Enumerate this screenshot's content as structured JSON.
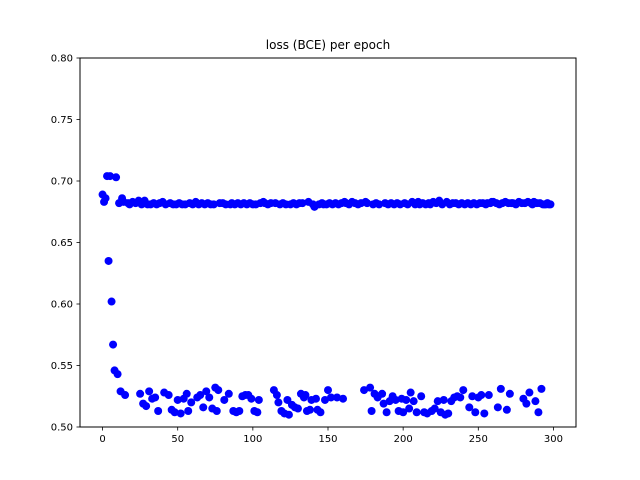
{
  "chart_data": {
    "type": "scatter",
    "title": "loss (BCE) per epoch",
    "xlabel": "",
    "ylabel": "",
    "xlim": [
      -15,
      315
    ],
    "ylim": [
      0.5,
      0.8
    ],
    "xticks": [
      0,
      50,
      100,
      150,
      200,
      250,
      300
    ],
    "yticks": [
      0.5,
      0.55,
      0.6,
      0.65,
      0.7,
      0.75,
      0.8
    ],
    "ytick_labels": [
      "0.50",
      "0.55",
      "0.60",
      "0.65",
      "0.70",
      "0.75",
      "0.80"
    ],
    "grid": false,
    "marker_color": "#0000ff",
    "series": [
      {
        "points": [
          [
            0,
            0.689
          ],
          [
            1,
            0.683
          ],
          [
            2,
            0.686
          ],
          [
            3,
            0.704
          ],
          [
            4,
            0.635
          ],
          [
            5,
            0.704
          ],
          [
            6,
            0.602
          ],
          [
            7,
            0.567
          ],
          [
            8,
            0.546
          ],
          [
            9,
            0.703
          ],
          [
            10,
            0.543
          ],
          [
            11,
            0.682
          ],
          [
            12,
            0.529
          ],
          [
            13,
            0.686
          ],
          [
            14,
            0.683
          ],
          [
            15,
            0.526
          ],
          [
            17,
            0.682
          ],
          [
            18,
            0.681
          ],
          [
            20,
            0.683
          ],
          [
            22,
            0.682
          ],
          [
            24,
            0.684
          ],
          [
            25,
            0.527
          ],
          [
            26,
            0.681
          ],
          [
            27,
            0.519
          ],
          [
            28,
            0.684
          ],
          [
            29,
            0.517
          ],
          [
            30,
            0.681
          ],
          [
            31,
            0.529
          ],
          [
            32,
            0.681
          ],
          [
            33,
            0.523
          ],
          [
            34,
            0.682
          ],
          [
            35,
            0.524
          ],
          [
            36,
            0.681
          ],
          [
            37,
            0.513
          ],
          [
            38,
            0.682
          ],
          [
            40,
            0.683
          ],
          [
            41,
            0.528
          ],
          [
            42,
            0.681
          ],
          [
            44,
            0.526
          ],
          [
            45,
            0.682
          ],
          [
            46,
            0.514
          ],
          [
            47,
            0.681
          ],
          [
            48,
            0.512
          ],
          [
            49,
            0.681
          ],
          [
            50,
            0.522
          ],
          [
            51,
            0.682
          ],
          [
            52,
            0.511
          ],
          [
            53,
            0.681
          ],
          [
            54,
            0.523
          ],
          [
            55,
            0.681
          ],
          [
            56,
            0.527
          ],
          [
            57,
            0.513
          ],
          [
            58,
            0.682
          ],
          [
            59,
            0.52
          ],
          [
            60,
            0.681
          ],
          [
            62,
            0.683
          ],
          [
            63,
            0.524
          ],
          [
            64,
            0.681
          ],
          [
            65,
            0.526
          ],
          [
            66,
            0.682
          ],
          [
            67,
            0.516
          ],
          [
            68,
            0.681
          ],
          [
            69,
            0.529
          ],
          [
            70,
            0.682
          ],
          [
            71,
            0.524
          ],
          [
            72,
            0.681
          ],
          [
            73,
            0.515
          ],
          [
            74,
            0.681
          ],
          [
            75,
            0.532
          ],
          [
            76,
            0.513
          ],
          [
            77,
            0.53
          ],
          [
            78,
            0.682
          ],
          [
            80,
            0.682
          ],
          [
            81,
            0.522
          ],
          [
            82,
            0.681
          ],
          [
            84,
            0.527
          ],
          [
            85,
            0.681
          ],
          [
            86,
            0.682
          ],
          [
            87,
            0.513
          ],
          [
            88,
            0.681
          ],
          [
            89,
            0.512
          ],
          [
            90,
            0.682
          ],
          [
            91,
            0.513
          ],
          [
            92,
            0.681
          ],
          [
            93,
            0.525
          ],
          [
            94,
            0.682
          ],
          [
            95,
            0.526
          ],
          [
            96,
            0.681
          ],
          [
            97,
            0.526
          ],
          [
            98,
            0.682
          ],
          [
            99,
            0.523
          ],
          [
            100,
            0.681
          ],
          [
            101,
            0.513
          ],
          [
            102,
            0.681
          ],
          [
            103,
            0.512
          ],
          [
            104,
            0.522
          ],
          [
            105,
            0.682
          ],
          [
            107,
            0.683
          ],
          [
            108,
            0.682
          ],
          [
            110,
            0.681
          ],
          [
            112,
            0.682
          ],
          [
            114,
            0.53
          ],
          [
            115,
            0.682
          ],
          [
            116,
            0.526
          ],
          [
            117,
            0.52
          ],
          [
            118,
            0.681
          ],
          [
            119,
            0.513
          ],
          [
            120,
            0.682
          ],
          [
            121,
            0.511
          ],
          [
            122,
            0.681
          ],
          [
            123,
            0.522
          ],
          [
            124,
            0.51
          ],
          [
            125,
            0.681
          ],
          [
            126,
            0.518
          ],
          [
            127,
            0.682
          ],
          [
            128,
            0.516
          ],
          [
            129,
            0.681
          ],
          [
            130,
            0.515
          ],
          [
            131,
            0.682
          ],
          [
            132,
            0.527
          ],
          [
            133,
            0.682
          ],
          [
            134,
            0.524
          ],
          [
            135,
            0.526
          ],
          [
            136,
            0.513
          ],
          [
            137,
            0.683
          ],
          [
            138,
            0.514
          ],
          [
            139,
            0.522
          ],
          [
            140,
            0.681
          ],
          [
            141,
            0.679
          ],
          [
            142,
            0.523
          ],
          [
            143,
            0.514
          ],
          [
            144,
            0.681
          ],
          [
            145,
            0.512
          ],
          [
            146,
            0.682
          ],
          [
            147,
            0.681
          ],
          [
            148,
            0.522
          ],
          [
            149,
            0.681
          ],
          [
            150,
            0.53
          ],
          [
            151,
            0.682
          ],
          [
            152,
            0.524
          ],
          [
            153,
            0.681
          ],
          [
            155,
            0.682
          ],
          [
            156,
            0.524
          ],
          [
            157,
            0.681
          ],
          [
            159,
            0.682
          ],
          [
            160,
            0.523
          ],
          [
            161,
            0.683
          ],
          [
            162,
            0.682
          ],
          [
            164,
            0.681
          ],
          [
            166,
            0.683
          ],
          [
            168,
            0.682
          ],
          [
            170,
            0.681
          ],
          [
            172,
            0.682
          ],
          [
            174,
            0.53
          ],
          [
            175,
            0.683
          ],
          [
            176,
            0.682
          ],
          [
            178,
            0.532
          ],
          [
            179,
            0.513
          ],
          [
            180,
            0.681
          ],
          [
            181,
            0.527
          ],
          [
            182,
            0.682
          ],
          [
            183,
            0.524
          ],
          [
            184,
            0.681
          ],
          [
            186,
            0.527
          ],
          [
            187,
            0.519
          ],
          [
            188,
            0.682
          ],
          [
            189,
            0.512
          ],
          [
            190,
            0.681
          ],
          [
            191,
            0.521
          ],
          [
            192,
            0.682
          ],
          [
            193,
            0.525
          ],
          [
            194,
            0.681
          ],
          [
            195,
            0.522
          ],
          [
            196,
            0.682
          ],
          [
            197,
            0.513
          ],
          [
            198,
            0.681
          ],
          [
            199,
            0.523
          ],
          [
            200,
            0.512
          ],
          [
            201,
            0.682
          ],
          [
            202,
            0.522
          ],
          [
            203,
            0.681
          ],
          [
            204,
            0.515
          ],
          [
            205,
            0.528
          ],
          [
            206,
            0.683
          ],
          [
            207,
            0.521
          ],
          [
            208,
            0.681
          ],
          [
            209,
            0.512
          ],
          [
            210,
            0.683
          ],
          [
            211,
            0.681
          ],
          [
            212,
            0.525
          ],
          [
            213,
            0.682
          ],
          [
            214,
            0.512
          ],
          [
            215,
            0.681
          ],
          [
            216,
            0.511
          ],
          [
            217,
            0.682
          ],
          [
            218,
            0.681
          ],
          [
            219,
            0.513
          ],
          [
            220,
            0.683
          ],
          [
            221,
            0.515
          ],
          [
            222,
            0.682
          ],
          [
            223,
            0.521
          ],
          [
            224,
            0.684
          ],
          [
            225,
            0.512
          ],
          [
            226,
            0.681
          ],
          [
            227,
            0.522
          ],
          [
            228,
            0.51
          ],
          [
            229,
            0.683
          ],
          [
            230,
            0.511
          ],
          [
            231,
            0.681
          ],
          [
            232,
            0.521
          ],
          [
            233,
            0.682
          ],
          [
            234,
            0.524
          ],
          [
            235,
            0.682
          ],
          [
            236,
            0.525
          ],
          [
            237,
            0.681
          ],
          [
            238,
            0.524
          ],
          [
            239,
            0.682
          ],
          [
            240,
            0.53
          ],
          [
            241,
            0.681
          ],
          [
            243,
            0.682
          ],
          [
            244,
            0.516
          ],
          [
            245,
            0.681
          ],
          [
            246,
            0.525
          ],
          [
            247,
            0.682
          ],
          [
            248,
            0.512
          ],
          [
            249,
            0.681
          ],
          [
            250,
            0.524
          ],
          [
            251,
            0.682
          ],
          [
            252,
            0.526
          ],
          [
            253,
            0.682
          ],
          [
            254,
            0.511
          ],
          [
            255,
            0.681
          ],
          [
            256,
            0.682
          ],
          [
            257,
            0.526
          ],
          [
            258,
            0.682
          ],
          [
            259,
            0.683
          ],
          [
            260,
            0.683
          ],
          [
            262,
            0.682
          ],
          [
            263,
            0.516
          ],
          [
            264,
            0.681
          ],
          [
            265,
            0.531
          ],
          [
            266,
            0.682
          ],
          [
            268,
            0.683
          ],
          [
            269,
            0.514
          ],
          [
            270,
            0.682
          ],
          [
            271,
            0.527
          ],
          [
            272,
            0.682
          ],
          [
            273,
            0.682
          ],
          [
            275,
            0.681
          ],
          [
            277,
            0.683
          ],
          [
            279,
            0.682
          ],
          [
            280,
            0.523
          ],
          [
            281,
            0.682
          ],
          [
            282,
            0.519
          ],
          [
            283,
            0.683
          ],
          [
            284,
            0.528
          ],
          [
            285,
            0.682
          ],
          [
            286,
            0.681
          ],
          [
            287,
            0.683
          ],
          [
            288,
            0.521
          ],
          [
            289,
            0.682
          ],
          [
            290,
            0.512
          ],
          [
            291,
            0.682
          ],
          [
            292,
            0.531
          ],
          [
            293,
            0.681
          ],
          [
            294,
            0.681
          ],
          [
            295,
            0.681
          ],
          [
            296,
            0.682
          ],
          [
            297,
            0.681
          ],
          [
            298,
            0.681
          ]
        ]
      }
    ]
  }
}
